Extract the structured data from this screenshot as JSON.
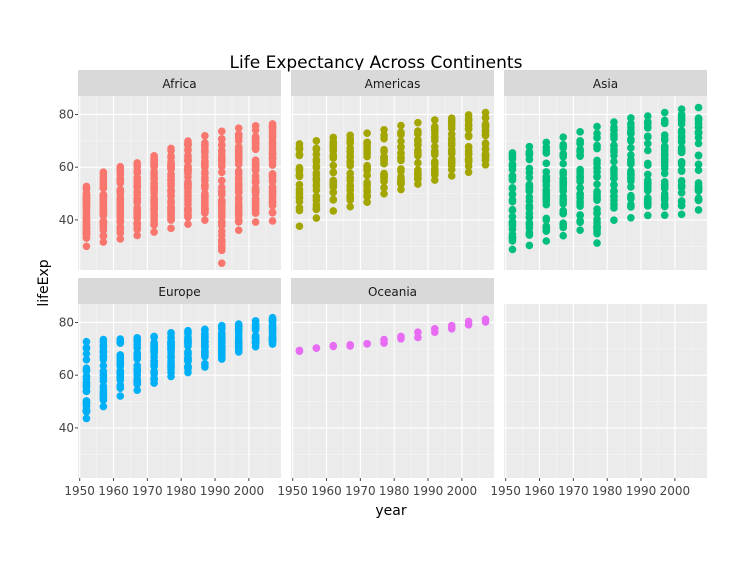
{
  "chart_data": {
    "type": "scatter",
    "title": "Life Expectancy Across Continents",
    "xlabel": "year",
    "ylabel": "lifeExp",
    "xlim": [
      1949.5,
      2009.5
    ],
    "ylim": [
      21,
      87
    ],
    "x_ticks": [
      1950,
      1960,
      1970,
      1980,
      1990,
      2000
    ],
    "y_ticks": [
      40,
      60,
      80
    ],
    "years": [
      1952,
      1957,
      1962,
      1967,
      1972,
      1977,
      1982,
      1987,
      1992,
      1997,
      2002,
      2007
    ],
    "facets": [
      {
        "name": "Africa",
        "color": "#F8766D",
        "ranges": [
          [
            30.0,
            52.7
          ],
          [
            31.6,
            58.1
          ],
          [
            32.8,
            60.2
          ],
          [
            34.1,
            61.6
          ],
          [
            35.4,
            64.3
          ],
          [
            36.8,
            67.1
          ],
          [
            38.4,
            69.9
          ],
          [
            39.9,
            71.9
          ],
          [
            23.6,
            73.6
          ],
          [
            36.1,
            74.8
          ],
          [
            39.2,
            75.7
          ],
          [
            39.6,
            76.4
          ]
        ]
      },
      {
        "name": "Americas",
        "color": "#A3A500",
        "ranges": [
          [
            37.6,
            68.8
          ],
          [
            40.7,
            70.0
          ],
          [
            43.4,
            71.3
          ],
          [
            45.0,
            72.1
          ],
          [
            46.7,
            72.9
          ],
          [
            49.9,
            74.2
          ],
          [
            51.5,
            75.8
          ],
          [
            53.6,
            76.9
          ],
          [
            55.1,
            77.9
          ],
          [
            56.7,
            78.6
          ],
          [
            58.1,
            79.8
          ],
          [
            60.9,
            80.7
          ]
        ]
      },
      {
        "name": "Asia",
        "color": "#00BF7D",
        "ranges": [
          [
            28.8,
            65.4
          ],
          [
            30.3,
            67.8
          ],
          [
            32.0,
            69.4
          ],
          [
            34.0,
            71.4
          ],
          [
            36.1,
            73.4
          ],
          [
            31.2,
            75.4
          ],
          [
            39.9,
            77.1
          ],
          [
            40.8,
            78.7
          ],
          [
            41.7,
            79.4
          ],
          [
            41.8,
            80.7
          ],
          [
            42.1,
            82.0
          ],
          [
            43.8,
            82.6
          ]
        ]
      },
      {
        "name": "Europe",
        "color": "#00B0F6",
        "ranges": [
          [
            43.6,
            72.7
          ],
          [
            48.1,
            73.5
          ],
          [
            52.1,
            73.7
          ],
          [
            54.3,
            74.2
          ],
          [
            57.0,
            74.7
          ],
          [
            59.5,
            76.1
          ],
          [
            61.0,
            76.9
          ],
          [
            63.1,
            77.4
          ],
          [
            66.1,
            78.8
          ],
          [
            68.8,
            79.4
          ],
          [
            70.8,
            80.6
          ],
          [
            71.8,
            81.8
          ]
        ]
      },
      {
        "name": "Oceania",
        "color": "#E76BF3",
        "ranges": [
          [
            69.1,
            69.4
          ],
          [
            70.3,
            70.3
          ],
          [
            70.9,
            71.2
          ],
          [
            71.1,
            71.5
          ],
          [
            71.9,
            71.9
          ],
          [
            72.2,
            73.5
          ],
          [
            73.8,
            74.7
          ],
          [
            74.3,
            76.3
          ],
          [
            76.3,
            77.6
          ],
          [
            77.6,
            78.8
          ],
          [
            79.1,
            80.4
          ],
          [
            80.2,
            81.2
          ]
        ]
      }
    ]
  }
}
